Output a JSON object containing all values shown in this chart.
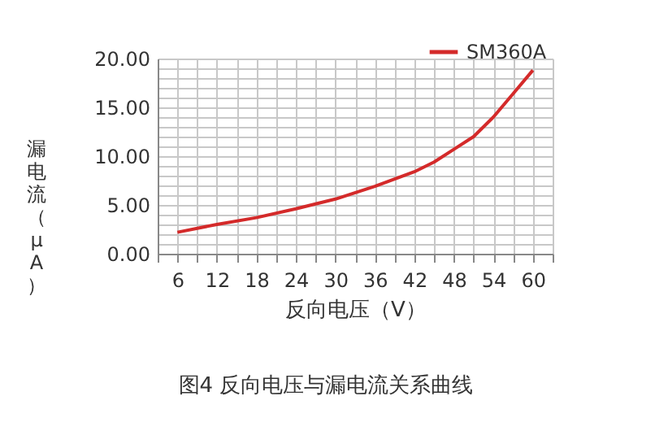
{
  "chart_data": {
    "type": "line",
    "title": "图4 反向电压与漏电流关系曲线",
    "xlabel": "反向电压（V）",
    "ylabel": "漏电流（μA）",
    "x": [
      6,
      12,
      18,
      24,
      30,
      36,
      42,
      45,
      48,
      51,
      54,
      57,
      60
    ],
    "series": [
      {
        "name": "SM360A",
        "color": "#d42a2a",
        "values": [
          2.2,
          3.0,
          3.7,
          4.6,
          5.6,
          6.9,
          8.4,
          9.4,
          10.7,
          12.0,
          14.0,
          16.4,
          18.8
        ]
      }
    ],
    "xlim": [
      3,
      63
    ],
    "xticks": [
      {
        "value": 3,
        "label": null
      },
      6,
      {
        "value": 9,
        "label": null
      },
      12,
      {
        "value": 15,
        "label": null
      },
      18,
      {
        "value": 21,
        "label": null
      },
      24,
      {
        "value": 27,
        "label": null
      },
      30,
      {
        "value": 33,
        "label": null
      },
      36,
      {
        "value": 39,
        "label": null
      },
      42,
      {
        "value": 45,
        "label": null
      },
      48,
      {
        "value": 51,
        "label": null
      },
      54,
      {
        "value": 57,
        "label": null
      },
      60,
      {
        "value": 63,
        "label": null
      }
    ],
    "ylim": [
      0,
      20
    ],
    "yticks": [
      {
        "value": 0,
        "label": "0.00"
      },
      {
        "value": 1,
        "label": null
      },
      {
        "value": 2,
        "label": null
      },
      {
        "value": 3,
        "label": null
      },
      {
        "value": 4,
        "label": null
      },
      {
        "value": 5,
        "label": "5.00"
      },
      {
        "value": 6,
        "label": null
      },
      {
        "value": 7,
        "label": null
      },
      {
        "value": 8,
        "label": null
      },
      {
        "value": 9,
        "label": null
      },
      {
        "value": 10,
        "label": "10.00"
      },
      {
        "value": 11,
        "label": null
      },
      {
        "value": 12,
        "label": null
      },
      {
        "value": 13,
        "label": null
      },
      {
        "value": 14,
        "label": null
      },
      {
        "value": 15,
        "label": "15.00"
      },
      {
        "value": 16,
        "label": null
      },
      {
        "value": 17,
        "label": null
      },
      {
        "value": 18,
        "label": null
      },
      {
        "value": 19,
        "label": null
      },
      {
        "value": 20,
        "label": "20.00"
      }
    ],
    "grid": true,
    "legend": "top right",
    "marker": "none",
    "line_style": "solid"
  }
}
